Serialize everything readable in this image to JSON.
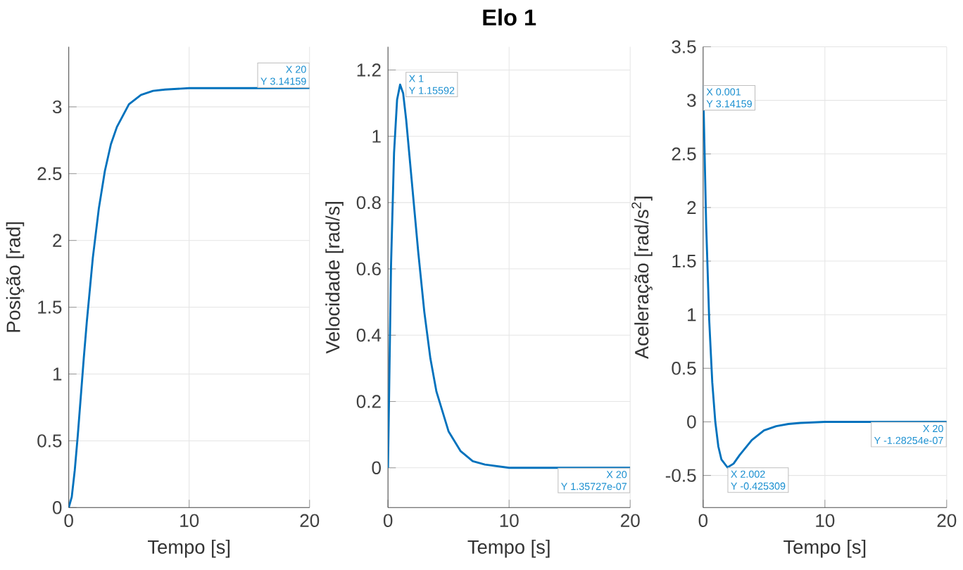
{
  "chart_data": [
    {
      "type": "line",
      "xlabel": "Tempo [s]",
      "ylabel": "Posição [rad]",
      "color": "#0072bd",
      "grid": true,
      "xlim": [
        0,
        20
      ],
      "ylim": [
        0,
        3.45
      ],
      "xticks": [
        0,
        10,
        20
      ],
      "yticks": [
        0,
        0.5,
        1,
        1.5,
        2,
        2.5,
        3
      ],
      "x": [
        0,
        0.25,
        0.5,
        0.75,
        1,
        1.25,
        1.5,
        2,
        2.5,
        3,
        3.5,
        4,
        5,
        6,
        7,
        8,
        10,
        12,
        15,
        20
      ],
      "values": [
        0,
        0.08,
        0.28,
        0.54,
        0.83,
        1.12,
        1.39,
        1.87,
        2.24,
        2.52,
        2.72,
        2.85,
        3.02,
        3.09,
        3.12,
        3.13,
        3.14,
        3.14,
        3.14,
        3.14159
      ],
      "annotations": [
        {
          "text": "X 20",
          "x": 20,
          "y": 3.14159
        },
        {
          "text": "Y 3.14159",
          "x": 20,
          "y": 3.14159
        }
      ]
    },
    {
      "type": "line",
      "title": "Elo 1",
      "xlabel": "Tempo [s]",
      "ylabel": "Velocidade [rad/s]",
      "color": "#0072bd",
      "grid": true,
      "xlim": [
        0,
        20
      ],
      "ylim": [
        -0.12,
        1.27
      ],
      "xticks": [
        0,
        10,
        20
      ],
      "yticks": [
        0,
        0.2,
        0.4,
        0.6,
        0.8,
        1,
        1.2
      ],
      "x": [
        0,
        0.25,
        0.5,
        0.75,
        1,
        1.25,
        1.5,
        2,
        2.5,
        3,
        3.5,
        4,
        5,
        6,
        7,
        8,
        10,
        12,
        15,
        20
      ],
      "values": [
        0,
        0.61,
        0.95,
        1.11,
        1.15592,
        1.13,
        1.05,
        0.85,
        0.65,
        0.47,
        0.33,
        0.23,
        0.11,
        0.05,
        0.02,
        0.01,
        0,
        0,
        0,
        1.35727e-07
      ],
      "annotations": [
        {
          "text": "X 1",
          "x": 1,
          "y": 1.15592
        },
        {
          "text": "Y 1.15592",
          "x": 1,
          "y": 1.15592
        },
        {
          "text": "X 20",
          "x": 20,
          "y": 1.35727e-07
        },
        {
          "text": "Y 1.35727e-07",
          "x": 20,
          "y": 1.35727e-07
        }
      ]
    },
    {
      "type": "line",
      "xlabel": "Tempo [s]",
      "ylabel": "Aceleração [rad/s$^{2}$]",
      "color": "#0072bd",
      "grid": true,
      "xlim": [
        0,
        20
      ],
      "ylim": [
        -0.8,
        3.5
      ],
      "xticks": [
        0,
        10,
        20
      ],
      "yticks": [
        -0.5,
        0,
        0.5,
        1,
        1.5,
        2,
        2.5,
        3,
        3.5
      ],
      "x": [
        0.001,
        0.25,
        0.5,
        0.75,
        1,
        1.25,
        1.5,
        2.002,
        2.5,
        3,
        3.5,
        4,
        5,
        6,
        7,
        8,
        10,
        12,
        15,
        20
      ],
      "values": [
        3.14159,
        1.84,
        0.95,
        0.37,
        0,
        -0.23,
        -0.35,
        -0.425309,
        -0.39,
        -0.31,
        -0.24,
        -0.17,
        -0.08,
        -0.04,
        -0.02,
        -0.01,
        0,
        0,
        0,
        -1.28254e-07
      ],
      "annotations": [
        {
          "text": "X 0.001",
          "x": 0.001,
          "y": 3.14159
        },
        {
          "text": "Y 3.14159",
          "x": 0.001,
          "y": 3.14159
        },
        {
          "text": "X 2.002",
          "x": 2.002,
          "y": -0.425309
        },
        {
          "text": "Y -0.425309",
          "x": 2.002,
          "y": -0.425309
        },
        {
          "text": "X 20",
          "x": 20,
          "y": -1.28254e-07
        },
        {
          "text": "Y -1.28254e-07",
          "x": 20,
          "y": -1.28254e-07
        }
      ]
    }
  ]
}
